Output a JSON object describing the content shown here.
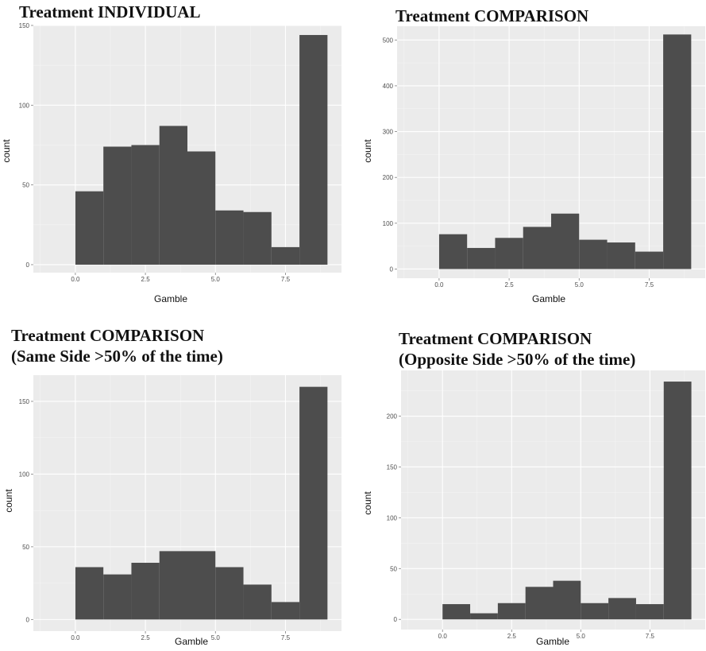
{
  "chart_data": [
    {
      "type": "bar",
      "title": "Treatment INDIVIDUAL",
      "subtitle": "",
      "xlabel": "Gamble",
      "ylabel": "count",
      "bin_edges": [
        0,
        1,
        2,
        3,
        4,
        5,
        6,
        7,
        8,
        9
      ],
      "values": [
        46,
        74,
        75,
        87,
        71,
        34,
        33,
        11,
        144
      ],
      "xlim": [
        -1.5,
        9.5
      ],
      "ylim": [
        -5,
        150
      ],
      "xticks": [
        0.0,
        2.5,
        5.0,
        7.5
      ],
      "xtick_labels": [
        "0.0",
        "2.5",
        "5.0",
        "7.5"
      ],
      "yticks": [
        0,
        50,
        100,
        150
      ],
      "ytick_labels": [
        "0",
        "50",
        "100",
        "150"
      ],
      "grid": true
    },
    {
      "type": "bar",
      "title": "Treatment COMPARISON",
      "subtitle": "",
      "xlabel": "Gamble",
      "ylabel": "count",
      "bin_edges": [
        0,
        1,
        2,
        3,
        4,
        5,
        6,
        7,
        8,
        9
      ],
      "values": [
        76,
        46,
        68,
        92,
        121,
        64,
        58,
        38,
        512
      ],
      "xlim": [
        -1.5,
        9.5
      ],
      "ylim": [
        -20,
        530
      ],
      "xticks": [
        0.0,
        2.5,
        5.0,
        7.5
      ],
      "xtick_labels": [
        "0.0",
        "2.5",
        "5.0",
        "7.5"
      ],
      "yticks": [
        0,
        100,
        200,
        300,
        400,
        500
      ],
      "ytick_labels": [
        "0",
        "100",
        "200",
        "300",
        "400",
        "500"
      ],
      "grid": true
    },
    {
      "type": "bar",
      "title": "Treatment COMPARISON",
      "subtitle": "(Same Side >50% of the time)",
      "xlabel": "Gamble",
      "ylabel": "count",
      "bin_edges": [
        0,
        1,
        2,
        3,
        4,
        5,
        6,
        7,
        8,
        9
      ],
      "values": [
        36,
        31,
        39,
        47,
        47,
        36,
        24,
        12,
        160
      ],
      "xlim": [
        -1.5,
        9.5
      ],
      "ylim": [
        -8,
        168
      ],
      "xticks": [
        0.0,
        2.5,
        5.0,
        7.5
      ],
      "xtick_labels": [
        "0.0",
        "2.5",
        "5.0",
        "7.5"
      ],
      "yticks": [
        0,
        50,
        100,
        150
      ],
      "ytick_labels": [
        "0",
        "50",
        "100",
        "150"
      ],
      "grid": true
    },
    {
      "type": "bar",
      "title": "Treatment COMPARISON",
      "subtitle": "(Opposite Side >50% of the time)",
      "xlabel": "Gamble",
      "ylabel": "count",
      "bin_edges": [
        0,
        1,
        2,
        3,
        4,
        5,
        6,
        7,
        8,
        9
      ],
      "values": [
        15,
        6,
        16,
        32,
        38,
        16,
        21,
        15,
        234
      ],
      "xlim": [
        -1.5,
        9.5
      ],
      "ylim": [
        -10,
        245
      ],
      "xticks": [
        0.0,
        2.5,
        5.0,
        7.5
      ],
      "xtick_labels": [
        "0.0",
        "2.5",
        "5.0",
        "7.5"
      ],
      "yticks": [
        0,
        50,
        100,
        150,
        200
      ],
      "ytick_labels": [
        "0",
        "50",
        "100",
        "150",
        "200"
      ],
      "grid": true
    }
  ],
  "colors": {
    "panel_bg": "#ebebeb",
    "grid_major": "#ffffff",
    "grid_minor": "#f4f4f4",
    "bar_fill": "#4d4d4d",
    "tick_color": "#7f7f7f"
  }
}
